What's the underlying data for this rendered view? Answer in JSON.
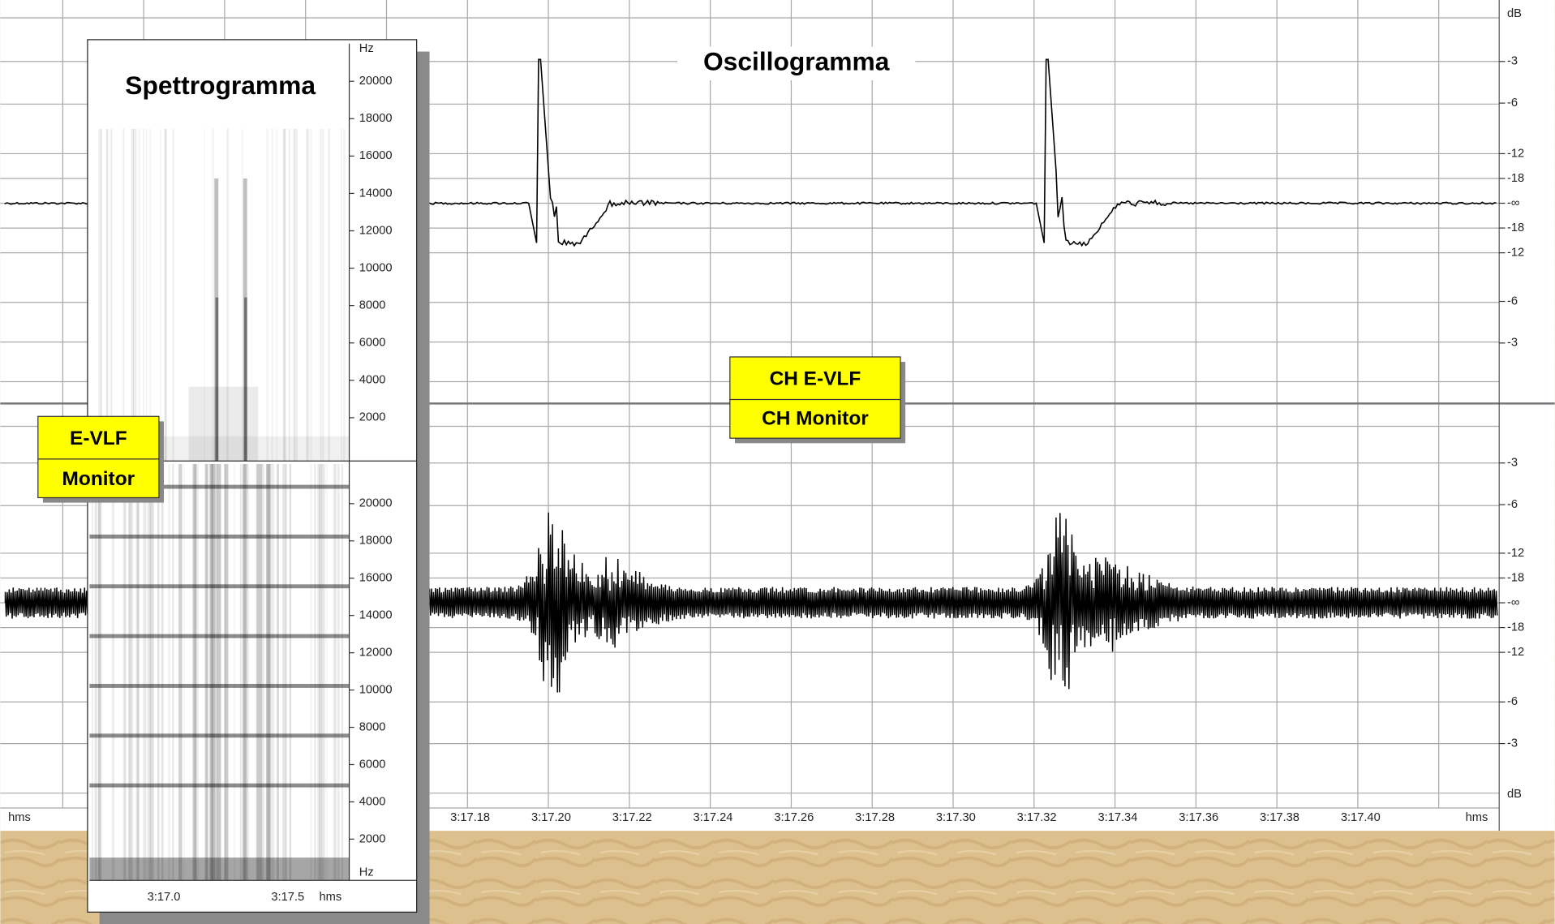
{
  "spectrogram": {
    "title": "Spettrogramma",
    "unit_top": "Hz",
    "freq_ticks_top": [
      "20000",
      "18000",
      "16000",
      "14000",
      "12000",
      "10000",
      "8000",
      "6000",
      "4000",
      "2000"
    ],
    "freq_ticks_bottom": [
      "20000",
      "18000",
      "16000",
      "14000",
      "12000",
      "10000",
      "8000",
      "6000",
      "4000",
      "2000"
    ],
    "unit_bottom": "Hz",
    "time_ticks": [
      "3:17.0",
      "3:17.5"
    ],
    "time_unit": "hms"
  },
  "oscillogram": {
    "title": "Oscillogramma",
    "channel_labels": [
      "CH E-VLF",
      "CH Monitor"
    ],
    "db_unit_top": "dB",
    "db_ticks_top": [
      "-3",
      "-6",
      "-12",
      "-18",
      "-∞",
      "-18",
      "-12",
      "-6",
      "-3"
    ],
    "db_ticks_bottom": [
      "-3",
      "-6",
      "-12",
      "-18",
      "-∞",
      "-18",
      "-12",
      "-6",
      "-3"
    ],
    "db_unit_bottom": "dB",
    "time_unit_left": "hms",
    "time_ticks": [
      "3:17.18",
      "3:17.20",
      "3:17.22",
      "3:17.24",
      "3:17.26",
      "3:17.28",
      "3:17.30",
      "3:17.32",
      "3:17.34",
      "3:17.36",
      "3:17.38",
      "3:17.40"
    ],
    "time_unit_right": "hms"
  },
  "channel_labels": [
    "E-VLF",
    "Monitor"
  ]
}
